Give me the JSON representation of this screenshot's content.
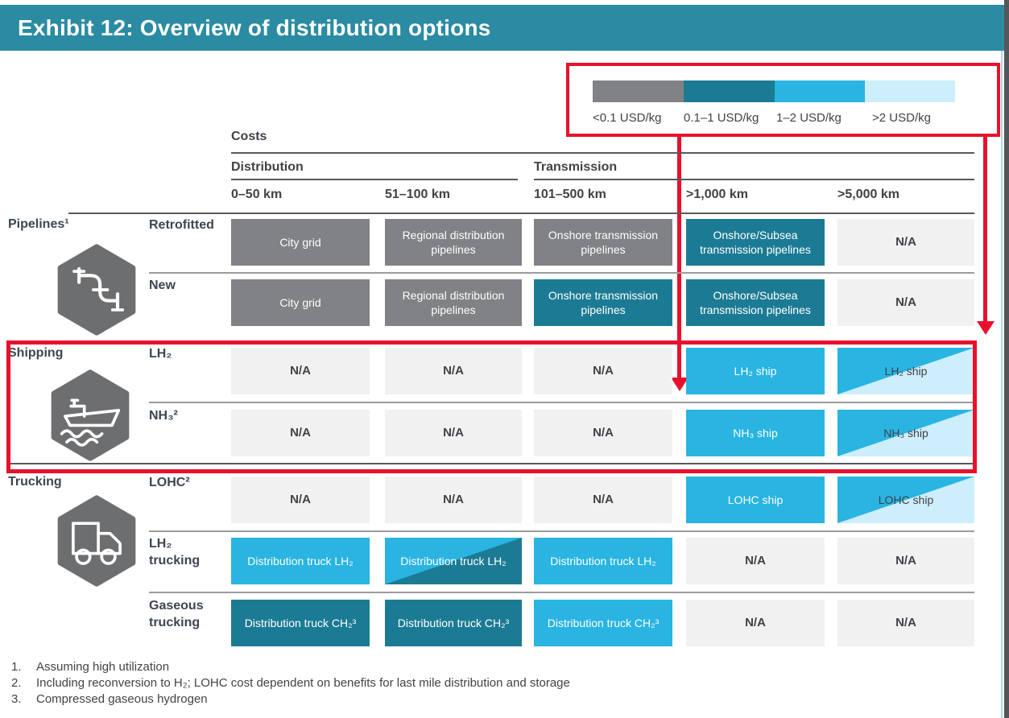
{
  "header": {
    "title": "Exhibit 12: Overview of distribution options"
  },
  "legend": {
    "items": [
      {
        "label": "<0.1 USD/kg",
        "color": "#808285"
      },
      {
        "label": "0.1–1 USD/kg",
        "color": "#1c7b94"
      },
      {
        "label": "1–2 USD/kg",
        "color": "#29b4e2"
      },
      {
        "label": ">2 USD/kg",
        "color": "#cdeefb"
      }
    ]
  },
  "table": {
    "costs_label": "Costs",
    "section_headers": {
      "distribution": "Distribution",
      "transmission": "Transmission"
    },
    "distance_headers": [
      "0–50 km",
      "51–100 km",
      "101–500 km",
      ">1,000 km",
      ">5,000 km"
    ],
    "row_groups": [
      {
        "label": "Pipelines¹",
        "icon": "pipeline-icon",
        "rows": [
          {
            "label": "Retrofitted",
            "cells": [
              {
                "text": "City grid",
                "type": "gray"
              },
              {
                "text": "Regional distribution pipelines",
                "type": "gray"
              },
              {
                "text": "Onshore transmission pipelines",
                "type": "gray"
              },
              {
                "text": "Onshore/Subsea transmission pipelines",
                "type": "darkteal"
              },
              {
                "text": "N/A",
                "type": "na"
              }
            ]
          },
          {
            "label": "New",
            "cells": [
              {
                "text": "City grid",
                "type": "gray"
              },
              {
                "text": "Regional distribution pipelines",
                "type": "gray"
              },
              {
                "text": "Onshore transmission pipelines",
                "type": "darkteal"
              },
              {
                "text": "Onshore/Subsea transmission pipelines",
                "type": "darkteal"
              },
              {
                "text": "N/A",
                "type": "na"
              }
            ]
          }
        ]
      },
      {
        "label": "Shipping",
        "icon": "ship-icon",
        "rows": [
          {
            "label": "LH₂",
            "cells": [
              {
                "text": "N/A",
                "type": "na"
              },
              {
                "text": "N/A",
                "type": "na"
              },
              {
                "text": "N/A",
                "type": "na"
              },
              {
                "text": "LH₂ ship",
                "type": "cyan"
              },
              {
                "text": "LH₂ ship",
                "type": "split-cyan-pale"
              }
            ]
          },
          {
            "label": "NH₃²",
            "cells": [
              {
                "text": "N/A",
                "type": "na"
              },
              {
                "text": "N/A",
                "type": "na"
              },
              {
                "text": "N/A",
                "type": "na"
              },
              {
                "text": "NH₃ ship",
                "type": "cyan"
              },
              {
                "text": "NH₃ ship",
                "type": "split-cyan-pale"
              }
            ]
          }
        ]
      },
      {
        "label": "Trucking",
        "icon": "truck-icon",
        "rows": [
          {
            "label": "LOHC²",
            "cells": [
              {
                "text": "N/A",
                "type": "na"
              },
              {
                "text": "N/A",
                "type": "na"
              },
              {
                "text": "N/A",
                "type": "na"
              },
              {
                "text": "LOHC ship",
                "type": "cyan"
              },
              {
                "text": "LOHC ship",
                "type": "split-cyan-pale"
              }
            ]
          },
          {
            "label": "LH₂\ntrucking",
            "cells": [
              {
                "text": "Distribution truck LH₂",
                "type": "cyan"
              },
              {
                "text": "Distribution truck LH₂",
                "type": "split-cyan-darkteal"
              },
              {
                "text": "Distribution truck LH₂",
                "type": "cyan"
              },
              {
                "text": "N/A",
                "type": "na"
              },
              {
                "text": "N/A",
                "type": "na"
              }
            ]
          },
          {
            "label": "Gaseous\ntrucking",
            "cells": [
              {
                "text": "Distribution truck CH₂³",
                "type": "darkteal"
              },
              {
                "text": "Distribution truck CH₂³",
                "type": "darkteal"
              },
              {
                "text": "Distribution truck CH₂³",
                "type": "cyan"
              },
              {
                "text": "N/A",
                "type": "na"
              },
              {
                "text": "N/A",
                "type": "na"
              }
            ]
          }
        ]
      }
    ]
  },
  "footnotes": [
    {
      "num": "1.",
      "text": "Assuming high utilization"
    },
    {
      "num": "2.",
      "text": "Including reconversion to H₂; LOHC cost dependent on benefits for last mile distribution and storage"
    },
    {
      "num": "3.",
      "text": "Compressed gaseous hydrogen"
    }
  ],
  "colors": {
    "header_bar": "#2a8ba2",
    "highlight_red": "#e8112d",
    "cell_gray": "#808285",
    "cell_dark_teal": "#1c7b94",
    "cell_cyan": "#29b4e2",
    "cell_pale_blue": "#cdeefb",
    "na_background": "#f1f1f2",
    "icon_hexagon": "#6d6e70"
  }
}
